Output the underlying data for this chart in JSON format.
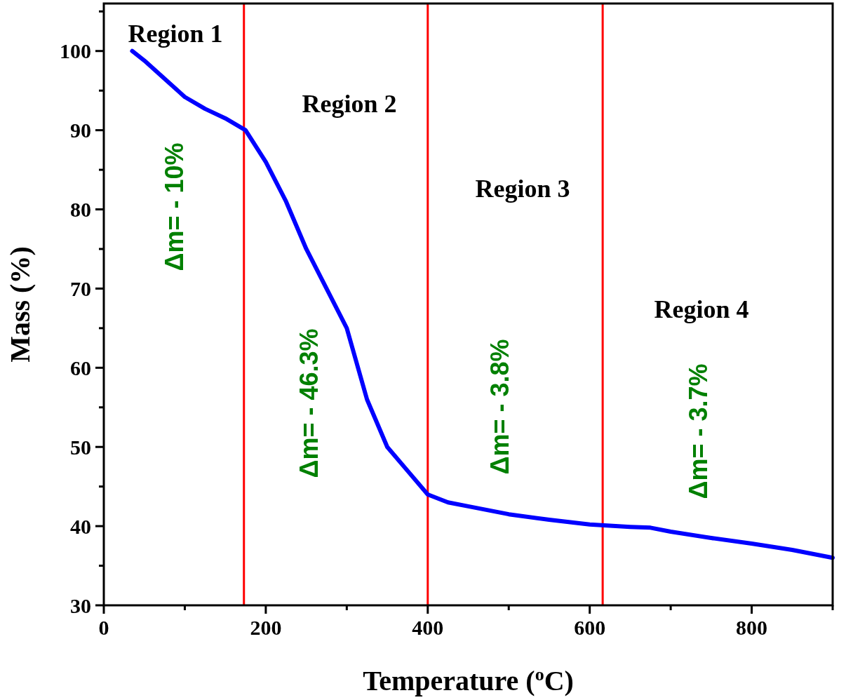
{
  "chart_data": {
    "type": "line",
    "xlabel": "Temperature ($^{o}$C)",
    "ylabel": "Mass (%)",
    "xlim": [
      0,
      900
    ],
    "ylim": [
      30,
      106
    ],
    "xticks": [
      0,
      {
        "value": 100,
        "label": null
      },
      200,
      {
        "value": 300,
        "label": null
      },
      400,
      {
        "value": 500,
        "label": null
      },
      600,
      {
        "value": 700,
        "label": null
      },
      800,
      {
        "value": 900,
        "label": null
      }
    ],
    "yticks": [
      30,
      {
        "value": 35,
        "label": null
      },
      40,
      {
        "value": 45,
        "label": null
      },
      50,
      {
        "value": 55,
        "label": null
      },
      60,
      {
        "value": 65,
        "label": null
      },
      70,
      {
        "value": 75,
        "label": null
      },
      80,
      {
        "value": 85,
        "label": null
      },
      90,
      {
        "value": 95,
        "label": null
      },
      100,
      {
        "value": 105,
        "label": null
      }
    ],
    "grid": false,
    "marker": "none",
    "line_style": "solid",
    "series": [
      {
        "color": "#0000ff",
        "x": [
          35,
          50,
          75,
          100,
          125,
          150,
          175,
          200,
          225,
          250,
          275,
          300,
          325,
          350,
          375,
          400,
          425,
          450,
          500,
          550,
          600,
          650,
          675,
          700,
          750,
          800,
          850,
          900
        ],
        "values": [
          100,
          98.8,
          96.5,
          94.2,
          92.7,
          91.5,
          90,
          86,
          81,
          75,
          70,
          65,
          56,
          50,
          47,
          44,
          43,
          42.5,
          41.5,
          40.8,
          40.2,
          39.9,
          39.8,
          39.3,
          38.5,
          37.8,
          37,
          36
        ]
      }
    ],
    "ref_lines": [
      {
        "axis": "x",
        "value": 173,
        "color": "#ff0000"
      },
      {
        "axis": "x",
        "value": 400,
        "color": "#ff0000"
      },
      {
        "axis": "x",
        "value": 616,
        "color": "#ff0000"
      }
    ],
    "annotations": [
      "Region 1",
      "Region 2",
      "Region 3",
      "Region 4",
      "Δm= - 10%",
      "Δm= - 46.3%",
      "Δm= - 3.8%",
      "Δm= - 3.7%"
    ]
  }
}
